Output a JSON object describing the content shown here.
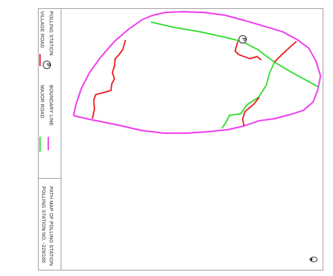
{
  "legend": {
    "polling_station_label": "POLLING STATION",
    "village_road_label": "VILLAGE ROAD",
    "boundary_line_label": "BOUNDARY LINE",
    "major_road_label": "MAJOR ROAD",
    "polling_symbol": "P"
  },
  "title_block": {
    "title": "PATH MAP OF POLLING STATION",
    "subtitle": "POLLING STATION NO. -229/166"
  },
  "map": {
    "station_symbol": "P",
    "colors": {
      "boundary": "#ee44ee",
      "major_road": "#33dd33",
      "village_road": "#ee2222"
    },
    "north_arrow": "north-arrow-icon"
  }
}
